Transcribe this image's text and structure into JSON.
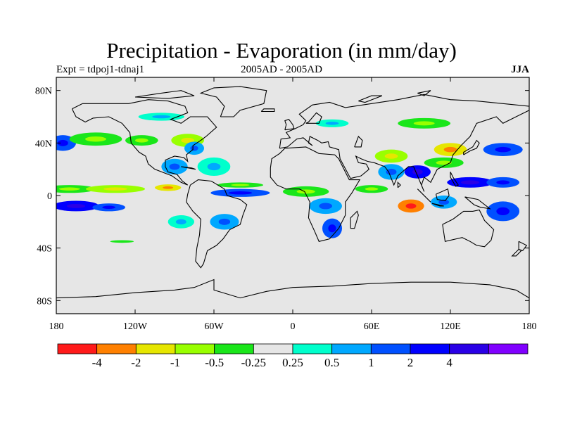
{
  "title": "Precipitation - Evaporation (in mm/day)",
  "left_subtitle": "Expt = tdpoj1-tdnaj1",
  "center_subtitle": "2005AD - 2005AD",
  "right_subtitle": "JJA",
  "map": {
    "projection": "cylindrical-equidistant",
    "lon_range": [
      -180,
      180
    ],
    "lat_range": [
      -90,
      90
    ],
    "background_color": "#e6e6e6",
    "lat_ticks": [
      {
        "value": 80,
        "label": "80N"
      },
      {
        "value": 40,
        "label": "40N"
      },
      {
        "value": 0,
        "label": "0"
      },
      {
        "value": -40,
        "label": "40S"
      },
      {
        "value": -80,
        "label": "80S"
      }
    ],
    "lon_ticks": [
      {
        "value": -180,
        "label": "180"
      },
      {
        "value": -120,
        "label": "120W"
      },
      {
        "value": -60,
        "label": "60W"
      },
      {
        "value": 0,
        "label": "0"
      },
      {
        "value": 60,
        "label": "60E"
      },
      {
        "value": 120,
        "label": "120E"
      },
      {
        "value": 180,
        "label": "180"
      }
    ]
  },
  "colorbar": {
    "colors": [
      "#ff1a1a",
      "#ff8000",
      "#e6e600",
      "#99ff00",
      "#1ae61a",
      "#e6e6e6",
      "#00ffcc",
      "#00a8ff",
      "#0050ff",
      "#0000ff",
      "#2a00e6",
      "#8000ff"
    ],
    "labels": [
      "-4",
      "-2",
      "-1",
      "-0.5",
      "-0.25",
      "0.25",
      "0.5",
      "1",
      "2",
      "4"
    ]
  },
  "chart_data": {
    "type": "heatmap",
    "field": "P-E difference (mm/day), contour-filled over global map",
    "levels": [
      -4,
      -2,
      -1,
      -0.5,
      -0.25,
      0.25,
      0.5,
      1,
      2,
      4
    ],
    "features": [
      {
        "lon": -170,
        "lat": 5,
        "w": 40,
        "h": 6,
        "level": 4
      },
      {
        "lon": -135,
        "lat": 5,
        "w": 45,
        "h": 6,
        "level": 3
      },
      {
        "lon": -95,
        "lat": 6,
        "w": 20,
        "h": 5,
        "level": 2
      },
      {
        "lon": -165,
        "lat": -8,
        "w": 35,
        "h": 8,
        "level": 9
      },
      {
        "lon": -140,
        "lat": -9,
        "w": 25,
        "h": 6,
        "level": 8
      },
      {
        "lon": -175,
        "lat": 40,
        "w": 20,
        "h": 12,
        "level": 8
      },
      {
        "lon": -150,
        "lat": 43,
        "w": 40,
        "h": 10,
        "level": 4
      },
      {
        "lon": -115,
        "lat": 42,
        "w": 25,
        "h": 8,
        "level": 4
      },
      {
        "lon": -80,
        "lat": 42,
        "w": 25,
        "h": 10,
        "level": 3
      },
      {
        "lon": -75,
        "lat": 36,
        "w": 15,
        "h": 10,
        "level": 7
      },
      {
        "lon": -90,
        "lat": 22,
        "w": 20,
        "h": 12,
        "level": 7
      },
      {
        "lon": -60,
        "lat": 22,
        "w": 25,
        "h": 14,
        "level": 6
      },
      {
        "lon": -40,
        "lat": 2,
        "w": 45,
        "h": 6,
        "level": 8
      },
      {
        "lon": -40,
        "lat": 8,
        "w": 35,
        "h": 4,
        "level": 4
      },
      {
        "lon": -52,
        "lat": -20,
        "w": 22,
        "h": 12,
        "level": 7
      },
      {
        "lon": -85,
        "lat": -20,
        "w": 20,
        "h": 10,
        "level": 6
      },
      {
        "lon": -130,
        "lat": -35,
        "w": 45,
        "h": 5,
        "level": 5
      },
      {
        "lon": 10,
        "lat": 3,
        "w": 35,
        "h": 8,
        "level": 4
      },
      {
        "lon": 25,
        "lat": -8,
        "w": 25,
        "h": 12,
        "level": 7
      },
      {
        "lon": 30,
        "lat": -25,
        "w": 15,
        "h": 15,
        "level": 8
      },
      {
        "lon": 75,
        "lat": 30,
        "w": 25,
        "h": 10,
        "level": 3
      },
      {
        "lon": 75,
        "lat": 18,
        "w": 20,
        "h": 12,
        "level": 7
      },
      {
        "lon": 95,
        "lat": 18,
        "w": 20,
        "h": 10,
        "level": 9
      },
      {
        "lon": 120,
        "lat": 35,
        "w": 25,
        "h": 10,
        "level": 2
      },
      {
        "lon": 115,
        "lat": 25,
        "w": 30,
        "h": 8,
        "level": 4
      },
      {
        "lon": 135,
        "lat": 10,
        "w": 35,
        "h": 8,
        "level": 9
      },
      {
        "lon": 160,
        "lat": 10,
        "w": 25,
        "h": 8,
        "level": 8
      },
      {
        "lon": 160,
        "lat": 35,
        "w": 30,
        "h": 10,
        "level": 8
      },
      {
        "lon": 90,
        "lat": -8,
        "w": 20,
        "h": 10,
        "level": 1
      },
      {
        "lon": 115,
        "lat": -5,
        "w": 20,
        "h": 10,
        "level": 7
      },
      {
        "lon": 160,
        "lat": -12,
        "w": 25,
        "h": 15,
        "level": 8
      },
      {
        "lon": 60,
        "lat": 5,
        "w": 25,
        "h": 6,
        "level": 4
      },
      {
        "lon": 30,
        "lat": 55,
        "w": 25,
        "h": 6,
        "level": 6
      },
      {
        "lon": 100,
        "lat": 55,
        "w": 40,
        "h": 8,
        "level": 4
      },
      {
        "lon": -100,
        "lat": 60,
        "w": 35,
        "h": 6,
        "level": 6
      }
    ]
  }
}
